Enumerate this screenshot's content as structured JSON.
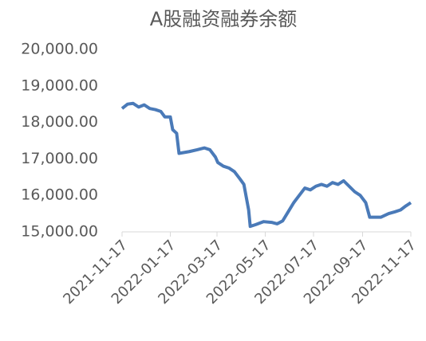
{
  "chart_data": {
    "type": "line",
    "title": "A股融资融券余额",
    "x": [
      "2021-11-17",
      "2021-11-24",
      "2021-12-01",
      "2021-12-08",
      "2021-12-15",
      "2021-12-22",
      "2021-12-29",
      "2022-01-05",
      "2022-01-10",
      "2022-01-17",
      "2022-01-20",
      "2022-01-25",
      "2022-01-28",
      "2022-02-10",
      "2022-02-20",
      "2022-03-01",
      "2022-03-08",
      "2022-03-15",
      "2022-03-18",
      "2022-03-25",
      "2022-04-01",
      "2022-04-08",
      "2022-04-15",
      "2022-04-20",
      "2022-04-26",
      "2022-04-28",
      "2022-05-05",
      "2022-05-15",
      "2022-05-25",
      "2022-06-01",
      "2022-06-08",
      "2022-06-15",
      "2022-06-22",
      "2022-06-29",
      "2022-07-06",
      "2022-07-13",
      "2022-07-20",
      "2022-07-27",
      "2022-08-03",
      "2022-08-10",
      "2022-08-17",
      "2022-08-24",
      "2022-08-31",
      "2022-09-07",
      "2022-09-14",
      "2022-09-21",
      "2022-09-26",
      "2022-10-10",
      "2022-10-20",
      "2022-10-28",
      "2022-11-04",
      "2022-11-10",
      "2022-11-17"
    ],
    "series": [
      {
        "name": "A股融资融券余额",
        "color": "#4a7ab8",
        "values": [
          18380,
          18500,
          18520,
          18420,
          18480,
          18380,
          18350,
          18300,
          18150,
          18150,
          17800,
          17700,
          17150,
          17200,
          17250,
          17300,
          17250,
          17050,
          16900,
          16800,
          16750,
          16650,
          16450,
          16300,
          15600,
          15150,
          15200,
          15280,
          15260,
          15220,
          15300,
          15550,
          15800,
          16000,
          16200,
          16150,
          16250,
          16300,
          16250,
          16350,
          16300,
          16400,
          16250,
          16100,
          16000,
          15800,
          15400,
          15400,
          15500,
          15550,
          15600,
          15700,
          15800
        ]
      }
    ],
    "xlim": [
      "2021-11-17",
      "2022-11-17"
    ],
    "xticks": [
      "2021-11-17",
      "2022-01-17",
      "2022-03-17",
      "2022-05-17",
      "2022-07-17",
      "2022-09-17",
      "2022-11-17"
    ],
    "ylim": [
      15000,
      20000
    ],
    "yticks": [
      {
        "value": 15000,
        "label": "15,000.00"
      },
      {
        "value": 16000,
        "label": "16,000.00"
      },
      {
        "value": 17000,
        "label": "17,000.00"
      },
      {
        "value": 18000,
        "label": "18,000.00"
      },
      {
        "value": 19000,
        "label": "19,000.00"
      },
      {
        "value": 20000,
        "label": "20,000.00"
      }
    ],
    "grid": false
  }
}
